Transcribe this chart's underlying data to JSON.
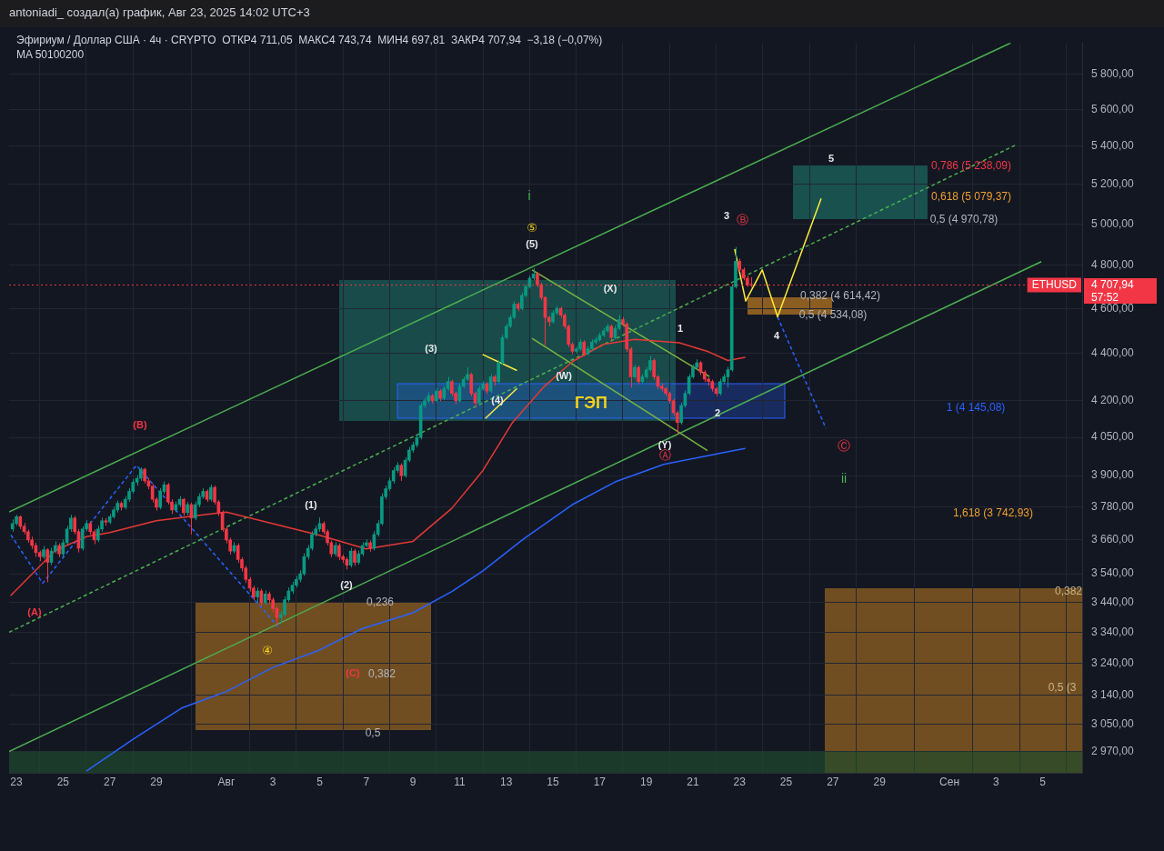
{
  "chart_data": {
    "type": "candlestick",
    "title": "Эфириум / Доллар США · 4ч · CRYPTO  ОТКР4 711,05  МАКС4 743,74  МИН4 697,81  ЗАКР4 707,94  −3,18 (−0,07%)",
    "subtitle": "MA 50100200",
    "log": true,
    "grid": true,
    "marker": "none",
    "xlim": [
      "2025-07-22T16:30",
      "2025-09-06T16:30"
    ],
    "xticks": [
      {
        "value": "2025-07-23",
        "label": "23"
      },
      {
        "value": "2025-07-25",
        "label": "25"
      },
      {
        "value": "2025-07-27",
        "label": "27"
      },
      {
        "value": "2025-07-29",
        "label": "29"
      },
      {
        "value": "2025-08-01",
        "label": "Авг"
      },
      {
        "value": "2025-08-03",
        "label": "3"
      },
      {
        "value": "2025-08-05",
        "label": "5"
      },
      {
        "value": "2025-08-07",
        "label": "7"
      },
      {
        "value": "2025-08-09",
        "label": "9"
      },
      {
        "value": "2025-08-11",
        "label": "11"
      },
      {
        "value": "2025-08-13",
        "label": "13"
      },
      {
        "value": "2025-08-15",
        "label": "15"
      },
      {
        "value": "2025-08-17",
        "label": "17"
      },
      {
        "value": "2025-08-19",
        "label": "19"
      },
      {
        "value": "2025-08-21",
        "label": "21"
      },
      {
        "value": "2025-08-23",
        "label": "23"
      },
      {
        "value": "2025-08-25",
        "label": "25"
      },
      {
        "value": "2025-08-27",
        "label": "27"
      },
      {
        "value": "2025-08-29",
        "label": "29"
      },
      {
        "value": "2025-09-01",
        "label": "Сен"
      },
      {
        "value": "2025-09-03",
        "label": "3"
      },
      {
        "value": "2025-09-05",
        "label": "5"
      }
    ],
    "ylim": [
      2908,
      5980
    ],
    "yticks": [
      {
        "value": 2970,
        "label": "2 970,00"
      },
      {
        "value": 3050,
        "label": "3 050,00"
      },
      {
        "value": 3140,
        "label": "3 140,00"
      },
      {
        "value": 3240,
        "label": "3 240,00"
      },
      {
        "value": 3340,
        "label": "3 340,00"
      },
      {
        "value": 3440,
        "label": "3 440,00"
      },
      {
        "value": 3540,
        "label": "3 540,00"
      },
      {
        "value": 3660,
        "label": "3 660,00"
      },
      {
        "value": 3780,
        "label": "3 780,00"
      },
      {
        "value": 3900,
        "label": "3 900,00"
      },
      {
        "value": 4050,
        "label": "4 050,00"
      },
      {
        "value": 4200,
        "label": "4 200,00"
      },
      {
        "value": 4400,
        "label": "4 400,00"
      },
      {
        "value": 4600,
        "label": "4 600,00"
      },
      {
        "value": 4800,
        "label": "4 800,00"
      },
      {
        "value": 5000,
        "label": "5 000,00"
      },
      {
        "value": 5200,
        "label": "5 200,00"
      },
      {
        "value": 5400,
        "label": "5 400,00"
      },
      {
        "value": 5600,
        "label": "5 600,00"
      },
      {
        "value": 5800,
        "label": "5 800,00"
      }
    ],
    "x": [
      "2025-07-22T20:00",
      "2025-07-23T00:00",
      "2025-07-23T04:00",
      "2025-07-23T08:00",
      "2025-07-23T12:00",
      "2025-07-23T16:00",
      "2025-07-23T20:00",
      "2025-07-24T00:00",
      "2025-07-24T04:00",
      "2025-07-24T08:00",
      "2025-07-24T12:00",
      "2025-07-24T16:00",
      "2025-07-24T20:00",
      "2025-07-25T00:00",
      "2025-07-25T04:00",
      "2025-07-25T08:00",
      "2025-07-25T12:00",
      "2025-07-25T16:00",
      "2025-07-25T20:00",
      "2025-07-26T00:00",
      "2025-07-26T04:00",
      "2025-07-26T08:00",
      "2025-07-26T12:00",
      "2025-07-26T16:00",
      "2025-07-26T20:00",
      "2025-07-27T00:00",
      "2025-07-27T04:00",
      "2025-07-27T08:00",
      "2025-07-27T12:00",
      "2025-07-27T16:00",
      "2025-07-27T20:00",
      "2025-07-28T00:00",
      "2025-07-28T04:00",
      "2025-07-28T08:00",
      "2025-07-28T12:00",
      "2025-07-28T16:00",
      "2025-07-28T20:00",
      "2025-07-29T00:00",
      "2025-07-29T04:00",
      "2025-07-29T08:00",
      "2025-07-29T12:00",
      "2025-07-29T16:00",
      "2025-07-29T20:00",
      "2025-07-30T00:00",
      "2025-07-30T04:00",
      "2025-07-30T08:00",
      "2025-07-30T12:00",
      "2025-07-30T16:00",
      "2025-07-30T20:00",
      "2025-07-31T00:00",
      "2025-07-31T04:00",
      "2025-07-31T08:00",
      "2025-07-31T12:00",
      "2025-07-31T16:00",
      "2025-07-31T20:00",
      "2025-08-01T00:00",
      "2025-08-01T04:00",
      "2025-08-01T08:00",
      "2025-08-01T12:00",
      "2025-08-01T16:00",
      "2025-08-01T20:00",
      "2025-08-02T00:00",
      "2025-08-02T04:00",
      "2025-08-02T08:00",
      "2025-08-02T12:00",
      "2025-08-02T16:00",
      "2025-08-02T20:00",
      "2025-08-03T00:00",
      "2025-08-03T04:00",
      "2025-08-03T08:00",
      "2025-08-03T12:00",
      "2025-08-03T16:00",
      "2025-08-03T20:00",
      "2025-08-04T00:00",
      "2025-08-04T04:00",
      "2025-08-04T08:00",
      "2025-08-04T12:00",
      "2025-08-04T16:00",
      "2025-08-04T20:00",
      "2025-08-05T00:00",
      "2025-08-05T04:00",
      "2025-08-05T08:00",
      "2025-08-05T12:00",
      "2025-08-05T16:00",
      "2025-08-05T20:00",
      "2025-08-06T00:00",
      "2025-08-06T04:00",
      "2025-08-06T08:00",
      "2025-08-06T12:00",
      "2025-08-06T16:00",
      "2025-08-06T20:00",
      "2025-08-07T00:00",
      "2025-08-07T04:00",
      "2025-08-07T08:00",
      "2025-08-07T12:00",
      "2025-08-07T16:00",
      "2025-08-07T20:00",
      "2025-08-08T00:00",
      "2025-08-08T04:00",
      "2025-08-08T08:00",
      "2025-08-08T12:00",
      "2025-08-08T16:00",
      "2025-08-08T20:00",
      "2025-08-09T00:00",
      "2025-08-09T04:00",
      "2025-08-09T08:00",
      "2025-08-09T12:00",
      "2025-08-09T16:00",
      "2025-08-09T20:00",
      "2025-08-10T00:00",
      "2025-08-10T04:00",
      "2025-08-10T08:00",
      "2025-08-10T12:00",
      "2025-08-10T16:00",
      "2025-08-10T20:00",
      "2025-08-11T00:00",
      "2025-08-11T04:00",
      "2025-08-11T08:00",
      "2025-08-11T12:00",
      "2025-08-11T16:00",
      "2025-08-11T20:00",
      "2025-08-12T00:00",
      "2025-08-12T04:00",
      "2025-08-12T08:00",
      "2025-08-12T12:00",
      "2025-08-12T16:00",
      "2025-08-12T20:00",
      "2025-08-13T00:00",
      "2025-08-13T04:00",
      "2025-08-13T08:00",
      "2025-08-13T12:00",
      "2025-08-13T16:00",
      "2025-08-13T20:00",
      "2025-08-14T00:00",
      "2025-08-14T04:00",
      "2025-08-14T08:00",
      "2025-08-14T12:00",
      "2025-08-14T16:00",
      "2025-08-14T20:00",
      "2025-08-15T00:00",
      "2025-08-15T04:00",
      "2025-08-15T08:00",
      "2025-08-15T12:00",
      "2025-08-15T16:00",
      "2025-08-15T20:00",
      "2025-08-16T00:00",
      "2025-08-16T04:00",
      "2025-08-16T08:00",
      "2025-08-16T12:00",
      "2025-08-16T16:00",
      "2025-08-16T20:00",
      "2025-08-17T00:00",
      "2025-08-17T04:00",
      "2025-08-17T08:00",
      "2025-08-17T12:00",
      "2025-08-17T16:00",
      "2025-08-17T20:00",
      "2025-08-18T00:00",
      "2025-08-18T04:00",
      "2025-08-18T08:00",
      "2025-08-18T12:00",
      "2025-08-18T16:00",
      "2025-08-18T20:00",
      "2025-08-19T00:00",
      "2025-08-19T04:00",
      "2025-08-19T08:00",
      "2025-08-19T12:00",
      "2025-08-19T16:00",
      "2025-08-19T20:00",
      "2025-08-20T00:00",
      "2025-08-20T04:00",
      "2025-08-20T08:00",
      "2025-08-20T12:00",
      "2025-08-20T16:00",
      "2025-08-20T20:00",
      "2025-08-21T00:00",
      "2025-08-21T04:00",
      "2025-08-21T08:00",
      "2025-08-21T12:00",
      "2025-08-21T16:00",
      "2025-08-21T20:00",
      "2025-08-22T00:00",
      "2025-08-22T04:00",
      "2025-08-22T08:00",
      "2025-08-22T12:00",
      "2025-08-22T16:00",
      "2025-08-22T20:00",
      "2025-08-23T00:00",
      "2025-08-23T04:00",
      "2025-08-23T08:00",
      "2025-08-23T12:00"
    ],
    "ohlc": [
      [
        3700,
        3735,
        3690,
        3720
      ],
      [
        3720,
        3752,
        3712,
        3745
      ],
      [
        3745,
        3750,
        3700,
        3710
      ],
      [
        3710,
        3722,
        3680,
        3690
      ],
      [
        3690,
        3698,
        3650,
        3660
      ],
      [
        3660,
        3672,
        3628,
        3640
      ],
      [
        3640,
        3650,
        3600,
        3615
      ],
      [
        3615,
        3622,
        3585,
        3600
      ],
      [
        3600,
        3638,
        3592,
        3625
      ],
      [
        3625,
        3630,
        3510,
        3580
      ],
      [
        3580,
        3632,
        3570,
        3620
      ],
      [
        3620,
        3655,
        3612,
        3640
      ],
      [
        3640,
        3648,
        3598,
        3610
      ],
      [
        3610,
        3662,
        3600,
        3650
      ],
      [
        3650,
        3712,
        3642,
        3700
      ],
      [
        3700,
        3752,
        3690,
        3740
      ],
      [
        3740,
        3748,
        3680,
        3690
      ],
      [
        3690,
        3700,
        3615,
        3630
      ],
      [
        3630,
        3710,
        3622,
        3700
      ],
      [
        3700,
        3732,
        3692,
        3720
      ],
      [
        3720,
        3728,
        3680,
        3690
      ],
      [
        3690,
        3698,
        3645,
        3660
      ],
      [
        3660,
        3712,
        3652,
        3700
      ],
      [
        3700,
        3742,
        3690,
        3730
      ],
      [
        3730,
        3740,
        3712,
        3725
      ],
      [
        3725,
        3755,
        3718,
        3745
      ],
      [
        3745,
        3782,
        3738,
        3770
      ],
      [
        3770,
        3805,
        3760,
        3795
      ],
      [
        3795,
        3802,
        3768,
        3780
      ],
      [
        3780,
        3822,
        3772,
        3810
      ],
      [
        3810,
        3852,
        3800,
        3840
      ],
      [
        3840,
        3886,
        3832,
        3875
      ],
      [
        3875,
        3902,
        3862,
        3890
      ],
      [
        3890,
        3932,
        3880,
        3925
      ],
      [
        3925,
        3930,
        3870,
        3880
      ],
      [
        3880,
        3890,
        3848,
        3860
      ],
      [
        3860,
        3868,
        3798,
        3810
      ],
      [
        3810,
        3818,
        3768,
        3780
      ],
      [
        3780,
        3852,
        3772,
        3840
      ],
      [
        3840,
        3878,
        3830,
        3865
      ],
      [
        3865,
        3872,
        3790,
        3800
      ],
      [
        3800,
        3810,
        3755,
        3770
      ],
      [
        3770,
        3802,
        3762,
        3790
      ],
      [
        3790,
        3822,
        3782,
        3810
      ],
      [
        3810,
        3815,
        3748,
        3760
      ],
      [
        3760,
        3800,
        3750,
        3790
      ],
      [
        3790,
        3798,
        3680,
        3740
      ],
      [
        3740,
        3802,
        3732,
        3790
      ],
      [
        3790,
        3832,
        3780,
        3820
      ],
      [
        3820,
        3852,
        3812,
        3840
      ],
      [
        3840,
        3848,
        3800,
        3810
      ],
      [
        3810,
        3866,
        3802,
        3855
      ],
      [
        3855,
        3862,
        3790,
        3800
      ],
      [
        3800,
        3808,
        3748,
        3760
      ],
      [
        3760,
        3768,
        3690,
        3700
      ],
      [
        3700,
        3708,
        3648,
        3660
      ],
      [
        3660,
        3668,
        3608,
        3620
      ],
      [
        3620,
        3652,
        3612,
        3640
      ],
      [
        3640,
        3648,
        3578,
        3590
      ],
      [
        3590,
        3598,
        3548,
        3560
      ],
      [
        3560,
        3568,
        3508,
        3520
      ],
      [
        3520,
        3528,
        3478,
        3490
      ],
      [
        3490,
        3498,
        3448,
        3460
      ],
      [
        3460,
        3492,
        3440,
        3480
      ],
      [
        3480,
        3488,
        3428,
        3440
      ],
      [
        3440,
        3482,
        3432,
        3470
      ],
      [
        3470,
        3478,
        3438,
        3450
      ],
      [
        3450,
        3458,
        3408,
        3420
      ],
      [
        3420,
        3428,
        3365,
        3390
      ],
      [
        3390,
        3412,
        3370,
        3400
      ],
      [
        3400,
        3462,
        3392,
        3450
      ],
      [
        3450,
        3492,
        3442,
        3480
      ],
      [
        3480,
        3512,
        3470,
        3500
      ],
      [
        3500,
        3532,
        3492,
        3520
      ],
      [
        3520,
        3552,
        3510,
        3540
      ],
      [
        3540,
        3612,
        3532,
        3600
      ],
      [
        3600,
        3642,
        3590,
        3630
      ],
      [
        3630,
        3692,
        3622,
        3680
      ],
      [
        3680,
        3712,
        3672,
        3700
      ],
      [
        3700,
        3742,
        3690,
        3720
      ],
      [
        3720,
        3728,
        3680,
        3690
      ],
      [
        3690,
        3698,
        3640,
        3650
      ],
      [
        3650,
        3658,
        3598,
        3610
      ],
      [
        3610,
        3652,
        3600,
        3640
      ],
      [
        3640,
        3648,
        3588,
        3600
      ],
      [
        3600,
        3608,
        3578,
        3590
      ],
      [
        3590,
        3598,
        3555,
        3570
      ],
      [
        3570,
        3632,
        3562,
        3620
      ],
      [
        3620,
        3628,
        3568,
        3580
      ],
      [
        3580,
        3622,
        3572,
        3610
      ],
      [
        3610,
        3652,
        3602,
        3640
      ],
      [
        3640,
        3662,
        3632,
        3650
      ],
      [
        3650,
        3658,
        3618,
        3630
      ],
      [
        3630,
        3692,
        3622,
        3680
      ],
      [
        3680,
        3732,
        3672,
        3720
      ],
      [
        3720,
        3832,
        3712,
        3820
      ],
      [
        3820,
        3862,
        3810,
        3850
      ],
      [
        3850,
        3892,
        3842,
        3880
      ],
      [
        3880,
        3932,
        3870,
        3920
      ],
      [
        3920,
        3952,
        3910,
        3940
      ],
      [
        3940,
        3948,
        3880,
        3900
      ],
      [
        3900,
        3972,
        3892,
        3960
      ],
      [
        3960,
        4012,
        3952,
        4000
      ],
      [
        4000,
        4032,
        3990,
        4020
      ],
      [
        4020,
        4062,
        4010,
        4050
      ],
      [
        4050,
        4192,
        4042,
        4180
      ],
      [
        4180,
        4212,
        4170,
        4200
      ],
      [
        4200,
        4235,
        4190,
        4220
      ],
      [
        4220,
        4228,
        4188,
        4200
      ],
      [
        4200,
        4252,
        4192,
        4240
      ],
      [
        4240,
        4248,
        4198,
        4210
      ],
      [
        4210,
        4262,
        4202,
        4250
      ],
      [
        4250,
        4300,
        4242,
        4280
      ],
      [
        4280,
        4288,
        4218,
        4230
      ],
      [
        4230,
        4238,
        4185,
        4200
      ],
      [
        4200,
        4272,
        4192,
        4260
      ],
      [
        4260,
        4302,
        4252,
        4290
      ],
      [
        4290,
        4340,
        4282,
        4310
      ],
      [
        4310,
        4318,
        4218,
        4230
      ],
      [
        4230,
        4238,
        4175,
        4190
      ],
      [
        4190,
        4262,
        4182,
        4250
      ],
      [
        4250,
        4282,
        4242,
        4270
      ],
      [
        4270,
        4278,
        4228,
        4240
      ],
      [
        4240,
        4312,
        4232,
        4300
      ],
      [
        4300,
        4308,
        4262,
        4280
      ],
      [
        4280,
        4372,
        4272,
        4360
      ],
      [
        4360,
        4482,
        4352,
        4470
      ],
      [
        4470,
        4532,
        4462,
        4520
      ],
      [
        4520,
        4572,
        4512,
        4560
      ],
      [
        4560,
        4632,
        4552,
        4620
      ],
      [
        4620,
        4628,
        4588,
        4600
      ],
      [
        4600,
        4672,
        4592,
        4660
      ],
      [
        4660,
        4712,
        4652,
        4700
      ],
      [
        4700,
        4752,
        4692,
        4740
      ],
      [
        4740,
        4788,
        4730,
        4760
      ],
      [
        4760,
        4768,
        4698,
        4710
      ],
      [
        4710,
        4718,
        4638,
        4650
      ],
      [
        4650,
        4658,
        4436,
        4560
      ],
      [
        4560,
        4568,
        4520,
        4540
      ],
      [
        4540,
        4592,
        4532,
        4580
      ],
      [
        4580,
        4612,
        4570,
        4600
      ],
      [
        4600,
        4608,
        4558,
        4570
      ],
      [
        4570,
        4578,
        4508,
        4520
      ],
      [
        4520,
        4528,
        4428,
        4440
      ],
      [
        4440,
        4448,
        4398,
        4410
      ],
      [
        4410,
        4432,
        4400,
        4420
      ],
      [
        4420,
        4462,
        4412,
        4450
      ],
      [
        4450,
        4458,
        4388,
        4400
      ],
      [
        4400,
        4432,
        4392,
        4420
      ],
      [
        4420,
        4462,
        4412,
        4450
      ],
      [
        4450,
        4472,
        4442,
        4460
      ],
      [
        4460,
        4492,
        4452,
        4480
      ],
      [
        4480,
        4512,
        4472,
        4500
      ],
      [
        4500,
        4532,
        4492,
        4520
      ],
      [
        4520,
        4528,
        4458,
        4470
      ],
      [
        4470,
        4522,
        4462,
        4510
      ],
      [
        4510,
        4572,
        4502,
        4550
      ],
      [
        4550,
        4562,
        4520,
        4530
      ],
      [
        4530,
        4538,
        4408,
        4420
      ],
      [
        4420,
        4428,
        4255,
        4300
      ],
      [
        4300,
        4352,
        4292,
        4340
      ],
      [
        4340,
        4348,
        4268,
        4280
      ],
      [
        4280,
        4312,
        4272,
        4300
      ],
      [
        4300,
        4342,
        4292,
        4330
      ],
      [
        4330,
        4390,
        4322,
        4370
      ],
      [
        4370,
        4378,
        4288,
        4300
      ],
      [
        4300,
        4308,
        4248,
        4260
      ],
      [
        4260,
        4272,
        4238,
        4250
      ],
      [
        4250,
        4258,
        4218,
        4230
      ],
      [
        4230,
        4238,
        4188,
        4200
      ],
      [
        4200,
        4208,
        4138,
        4150
      ],
      [
        4150,
        4158,
        4062,
        4110
      ],
      [
        4110,
        4192,
        4102,
        4180
      ],
      [
        4180,
        4242,
        4172,
        4230
      ],
      [
        4230,
        4312,
        4222,
        4300
      ],
      [
        4300,
        4352,
        4292,
        4340
      ],
      [
        4340,
        4375,
        4332,
        4360
      ],
      [
        4360,
        4368,
        4308,
        4320
      ],
      [
        4320,
        4328,
        4278,
        4290
      ],
      [
        4290,
        4298,
        4262,
        4280
      ],
      [
        4280,
        4288,
        4238,
        4250
      ],
      [
        4250,
        4258,
        4218,
        4230
      ],
      [
        4230,
        4292,
        4222,
        4280
      ],
      [
        4280,
        4312,
        4272,
        4300
      ],
      [
        4300,
        4342,
        4255,
        4330
      ],
      [
        4330,
        4712,
        4322,
        4700
      ],
      [
        4700,
        4888,
        4692,
        4820
      ],
      [
        4820,
        4832,
        4770,
        4780
      ],
      [
        4780,
        4790,
        4730,
        4740
      ],
      [
        4740,
        4752,
        4700,
        4711.05
      ],
      [
        4711.05,
        4743.74,
        4697.81,
        4707.94
      ]
    ],
    "series": [
      {
        "type": "line",
        "color": "#e53935",
        "x": [
          "2025-07-22T18:00",
          "2025-07-24T16:00",
          "2025-07-26T00:00",
          "2025-07-27T00:00",
          "2025-07-29T00:00",
          "2025-07-31T00:00",
          "2025-08-01T00:00",
          "2025-08-03T00:00",
          "2025-08-05T00:00",
          "2025-08-07T00:00",
          "2025-08-09T00:00",
          "2025-08-10T16:00",
          "2025-08-12T00:00",
          "2025-08-13T06:00",
          "2025-08-14T14:00",
          "2025-08-15T20:00",
          "2025-08-17T04:00",
          "2025-08-18T12:00",
          "2025-08-20T10:00",
          "2025-08-21T16:00",
          "2025-08-22T12:00",
          "2025-08-23T06:00"
        ],
        "values": [
          3464,
          3622,
          3672,
          3687,
          3730,
          3752,
          3762,
          3719,
          3677,
          3628,
          3655,
          3776,
          3920,
          4108,
          4255,
          4365,
          4440,
          4462,
          4447,
          4408,
          4370,
          4384
        ]
      },
      {
        "type": "line",
        "color": "#2962ff",
        "x": [
          "2025-07-26T00:00",
          "2025-07-28T00:00",
          "2025-07-30T02:00",
          "2025-08-01T00:00",
          "2025-08-03T00:00",
          "2025-08-05T00:00",
          "2025-08-06T19:00",
          "2025-08-09T00:00",
          "2025-08-10T16:00",
          "2025-08-12T00:00",
          "2025-08-13T18:00",
          "2025-08-15T20:00",
          "2025-08-17T16:00",
          "2025-08-19T18:00",
          "2025-08-21T08:00",
          "2025-08-22T21:00",
          "2025-08-23T06:00"
        ],
        "values": [
          2913,
          3006,
          3100,
          3151,
          3227,
          3283,
          3352,
          3406,
          3478,
          3550,
          3664,
          3790,
          3876,
          3944,
          3972,
          4000,
          4006
        ]
      },
      {
        "type": "line",
        "color": "#4caf50",
        "x": [
          "2025-07-22T16:30",
          "2025-09-03T15:00"
        ],
        "values": [
          3763,
          5980
        ]
      },
      {
        "type": "line",
        "color": "#4caf50",
        "line_style": "dashed",
        "x": [
          "2025-07-22T16:30",
          "2025-09-03T20:00"
        ],
        "values": [
          3341,
          5406
        ]
      },
      {
        "type": "line",
        "color": "#4caf50",
        "x": [
          "2025-07-22T16:30",
          "2025-09-04T22:30"
        ],
        "values": [
          2970,
          4818
        ]
      },
      {
        "type": "line",
        "color": "#7cb342",
        "x": [
          "2025-08-14T02:30",
          "2025-08-21T17:00"
        ],
        "values": [
          4779,
          4301
        ]
      },
      {
        "type": "line",
        "color": "#7cb342",
        "x": [
          "2025-08-14T02:30",
          "2025-08-21T15:00"
        ],
        "values": [
          4467,
          3998
        ]
      },
      {
        "type": "line",
        "color": "#ffeb3b",
        "x": [
          "2025-08-11T23:40",
          "2025-08-13T11:00"
        ],
        "values": [
          4396,
          4327
        ]
      },
      {
        "type": "line",
        "color": "#ffeb3b",
        "x": [
          "2025-08-12T02:30",
          "2025-08-13T11:00"
        ],
        "values": [
          4127,
          4251
        ]
      },
      {
        "type": "line",
        "color": "#2962ff",
        "line_style": "dashed",
        "x": [
          "2025-07-22T18:20",
          "2025-07-24T03:00",
          "2025-07-28T03:30",
          "2025-08-03T07:00"
        ],
        "values": [
          3678,
          3507,
          3940,
          3353
        ]
      },
      {
        "type": "line",
        "color": "#ffeb3b",
        "x": [
          "2025-08-22T19:00",
          "2025-08-23T06:20",
          "2025-08-23T23:20",
          "2025-08-24T15:10",
          "2025-08-26T12:00"
        ],
        "values": [
          4879,
          4634,
          4779,
          4562,
          5128
        ]
      },
      {
        "type": "line",
        "color": "#2962ff",
        "line_style": "dashed",
        "x": [
          "2025-08-24T15:10",
          "2025-08-26T16:50"
        ],
        "values": [
          4562,
          4087
        ]
      }
    ],
    "ref_lines": [
      {
        "axis": "y",
        "value": 4707.94,
        "label": "ETHUSD",
        "color": "#f23645",
        "line_style": "dotted"
      }
    ],
    "bands": [
      {
        "axis": "y",
        "from": 2908,
        "to": 2970,
        "color": "#1f4a2c"
      }
    ],
    "annotations": [
      "antoniadi_ создал(а) график, Авг 23, 2025 14:02 UTC+3",
      "(A)",
      "(B)",
      "(1)",
      "(2)",
      "(3)",
      "(4)",
      "⑤",
      "(5)",
      "i",
      "④",
      "(C)",
      "0,236",
      "0,382",
      "0,5",
      "(W)",
      "(X)",
      "(Y)",
      "Ⓐ",
      "1",
      "2",
      "3",
      "Ⓑ",
      "4",
      "5",
      "Ⓒ",
      "ii",
      "ГЭП",
      "0,786 (5 238,09)",
      "0,618 (5 079,37)",
      "0,5 (4 970,78)",
      "0,382 (4 614,42)",
      "0,5 (4 534,08)",
      "1 (4 145,08)",
      "1,618 (3 742,93)",
      "0,382",
      "0,5 (3",
      "4 707,94",
      "57:52"
    ]
  }
}
